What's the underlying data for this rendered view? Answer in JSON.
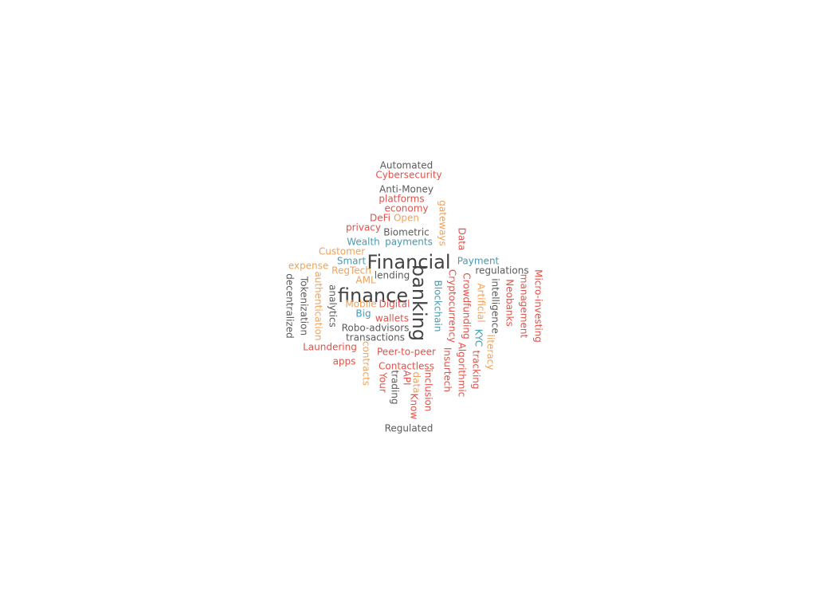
{
  "colors": {
    "gray": "#5a5a5a",
    "red": "#e0524a",
    "orange": "#f0a25a",
    "teal": "#4a9ab0",
    "dark": "#444444"
  },
  "words": [
    {
      "text": "Automated",
      "color": "gray"
    },
    {
      "text": "Cybersecurity",
      "color": "red"
    },
    {
      "text": "Anti-Money",
      "color": "gray"
    },
    {
      "text": "platforms",
      "color": "red"
    },
    {
      "text": "economy",
      "color": "red"
    },
    {
      "text": "DeFi",
      "color": "red"
    },
    {
      "text": "Open",
      "color": "orange"
    },
    {
      "text": "privacy",
      "color": "red"
    },
    {
      "text": "Biometric",
      "color": "gray"
    },
    {
      "text": "Wealth",
      "color": "teal"
    },
    {
      "text": "payments",
      "color": "teal"
    },
    {
      "text": "Customer",
      "color": "orange"
    },
    {
      "text": "Financial",
      "color": "dark"
    },
    {
      "text": "Smart",
      "color": "teal"
    },
    {
      "text": "expense",
      "color": "orange"
    },
    {
      "text": "Payment",
      "color": "teal"
    },
    {
      "text": "regulations",
      "color": "gray"
    },
    {
      "text": "RegTech",
      "color": "orange"
    },
    {
      "text": "lending",
      "color": "gray"
    },
    {
      "text": "AML",
      "color": "orange"
    },
    {
      "text": "finance",
      "color": "dark"
    },
    {
      "text": "Mobile",
      "color": "orange"
    },
    {
      "text": "Digital",
      "color": "red"
    },
    {
      "text": "Big",
      "color": "teal"
    },
    {
      "text": "wallets",
      "color": "red"
    },
    {
      "text": "Robo-advisors",
      "color": "gray"
    },
    {
      "text": "transactions",
      "color": "gray"
    },
    {
      "text": "Laundering",
      "color": "red"
    },
    {
      "text": "Peer-to-peer",
      "color": "red"
    },
    {
      "text": "apps",
      "color": "red"
    },
    {
      "text": "Contactless",
      "color": "red"
    },
    {
      "text": "API",
      "color": "red"
    },
    {
      "text": "Regulated",
      "color": "gray"
    },
    {
      "text": "gateways",
      "color": "orange"
    },
    {
      "text": "Data",
      "color": "red"
    },
    {
      "text": "banking",
      "color": "dark"
    },
    {
      "text": "Blockchain",
      "color": "teal"
    },
    {
      "text": "Cryptocurrency",
      "color": "red"
    },
    {
      "text": "Crowdfunding",
      "color": "red"
    },
    {
      "text": "Artificial",
      "color": "orange"
    },
    {
      "text": "intelligence",
      "color": "gray"
    },
    {
      "text": "Neobanks",
      "color": "red"
    },
    {
      "text": "management",
      "color": "red"
    },
    {
      "text": "Micro-investing",
      "color": "red"
    },
    {
      "text": "decentralized",
      "color": "gray"
    },
    {
      "text": "Tokenization",
      "color": "gray"
    },
    {
      "text": "authentication",
      "color": "orange"
    },
    {
      "text": "analytics",
      "color": "gray"
    },
    {
      "text": "contracts",
      "color": "orange"
    },
    {
      "text": "Your",
      "color": "red"
    },
    {
      "text": "trading",
      "color": "gray"
    },
    {
      "text": "data",
      "color": "orange"
    },
    {
      "text": "Know",
      "color": "red"
    },
    {
      "text": "inclusion",
      "color": "red"
    },
    {
      "text": "Insurtech",
      "color": "red"
    },
    {
      "text": "Algorithmic",
      "color": "red"
    },
    {
      "text": "KYC",
      "color": "teal"
    },
    {
      "text": "tracking",
      "color": "red"
    },
    {
      "text": "literacy",
      "color": "orange"
    }
  ]
}
